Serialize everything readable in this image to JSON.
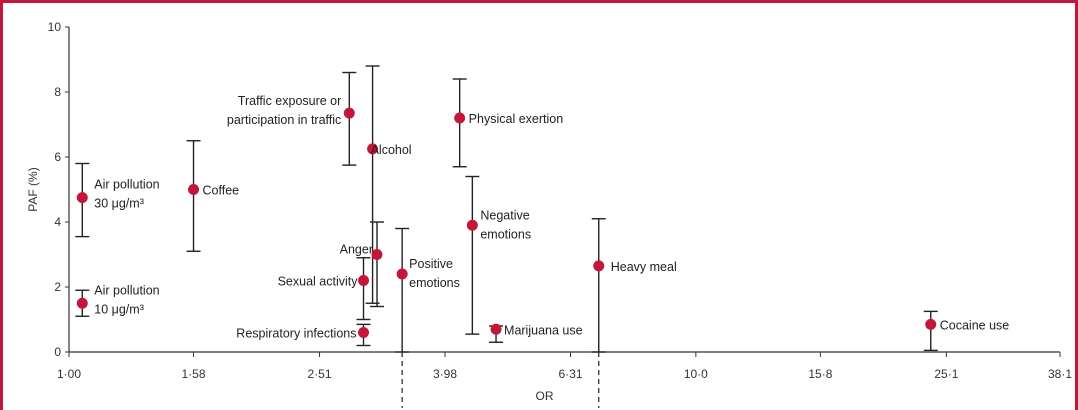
{
  "chart_data": {
    "type": "scatter",
    "xlabel": "OR",
    "ylabel": "PAF (%)",
    "x_scale": "log",
    "xlim": [
      1.0,
      38.1
    ],
    "ylim": [
      0,
      10
    ],
    "x_ticks": [
      {
        "value": 1.0,
        "label": "1·00"
      },
      {
        "value": 1.58,
        "label": "1·58"
      },
      {
        "value": 2.51,
        "label": "2·51"
      },
      {
        "value": 3.98,
        "label": "3·98"
      },
      {
        "value": 6.31,
        "label": "6·31"
      },
      {
        "value": 10.0,
        "label": "10·0"
      },
      {
        "value": 15.8,
        "label": "15·8"
      },
      {
        "value": 25.1,
        "label": "25·1"
      },
      {
        "value": 38.1,
        "label": "38·1"
      }
    ],
    "y_ticks": [
      {
        "value": 0,
        "label": "0"
      },
      {
        "value": 2,
        "label": "2"
      },
      {
        "value": 4,
        "label": "4"
      },
      {
        "value": 6,
        "label": "6"
      },
      {
        "value": 8,
        "label": "8"
      },
      {
        "value": 10,
        "label": "10"
      }
    ],
    "points": [
      {
        "label": "Air pollution\n10 μg/m³",
        "or": 1.05,
        "paf": 1.5,
        "paf_low": 1.1,
        "paf_high": 1.9
      },
      {
        "label": "Air pollution\n30 μg/m³",
        "or": 1.05,
        "paf": 4.75,
        "paf_low": 3.55,
        "paf_high": 5.8
      },
      {
        "label": "Coffee",
        "or": 1.58,
        "paf": 5.0,
        "paf_low": 3.1,
        "paf_high": 6.5
      },
      {
        "label": "Respiratory infections",
        "or": 2.95,
        "paf": 0.6,
        "paf_low": 0.2,
        "paf_high": 0.85
      },
      {
        "label": "Traffic exposure or\nparticipation in traffic",
        "or": 2.8,
        "paf": 7.35,
        "paf_low": 5.75,
        "paf_high": 8.6
      },
      {
        "label": "Alcohol",
        "or": 3.05,
        "paf": 6.25,
        "paf_low": 1.5,
        "paf_high": 8.8
      },
      {
        "label": "Anger",
        "or": 3.1,
        "paf": 3.0,
        "paf_low": 1.4,
        "paf_high": 4.0
      },
      {
        "label": "Sexual activity",
        "or": 2.95,
        "paf": 2.2,
        "paf_low": 1.0,
        "paf_high": 2.9
      },
      {
        "label": "Positive\nemotions",
        "or": 3.4,
        "paf": 2.4,
        "paf_low": 0.0,
        "paf_high": 3.8
      },
      {
        "label": "Physical exertion",
        "or": 4.2,
        "paf": 7.2,
        "paf_low": 5.7,
        "paf_high": 8.4
      },
      {
        "label": "Negative\nemotions",
        "or": 4.4,
        "paf": 3.9,
        "paf_low": 0.55,
        "paf_high": 5.4
      },
      {
        "label": "Marijuana use",
        "or": 4.8,
        "paf": 0.7,
        "paf_low": 0.3,
        "paf_high": 0.8
      },
      {
        "label": "Heavy meal",
        "or": 7.0,
        "paf": 2.65,
        "paf_low": 0.0,
        "paf_high": 4.1
      },
      {
        "label": "Cocaine use",
        "or": 23.7,
        "paf": 0.85,
        "paf_low": 0.05,
        "paf_high": 1.25
      }
    ],
    "colors": {
      "point": "#c4163b",
      "frame": "#c4163b",
      "axis": "#333333"
    },
    "grid": false
  }
}
